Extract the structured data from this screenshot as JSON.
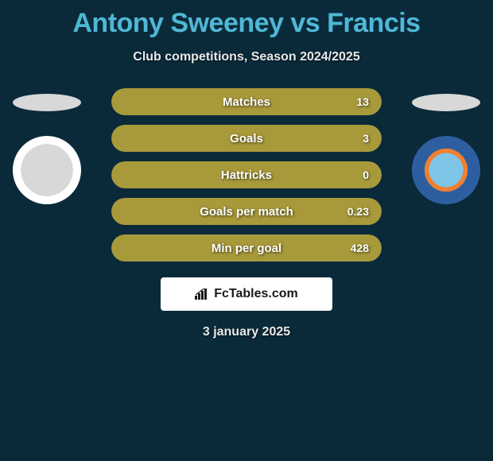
{
  "title": "Antony Sweeney vs Francis",
  "subtitle": "Club competitions, Season 2024/2025",
  "date": "3 january 2025",
  "brand": "FcTables.com",
  "colors": {
    "background": "#0a2a3a",
    "title": "#4fb8d6",
    "bar_fill": "#a89a3a",
    "bar_bg": "#1a3a4a",
    "text": "#ffffff"
  },
  "stats": [
    {
      "label": "Matches",
      "value": "13",
      "fill_pct": 100
    },
    {
      "label": "Goals",
      "value": "3",
      "fill_pct": 100
    },
    {
      "label": "Hattricks",
      "value": "0",
      "fill_pct": 100
    },
    {
      "label": "Goals per match",
      "value": "0.23",
      "fill_pct": 100
    },
    {
      "label": "Min per goal",
      "value": "428",
      "fill_pct": 100
    }
  ],
  "left_crest": "gateshead-football-club",
  "right_crest": "braintree-town-fc"
}
